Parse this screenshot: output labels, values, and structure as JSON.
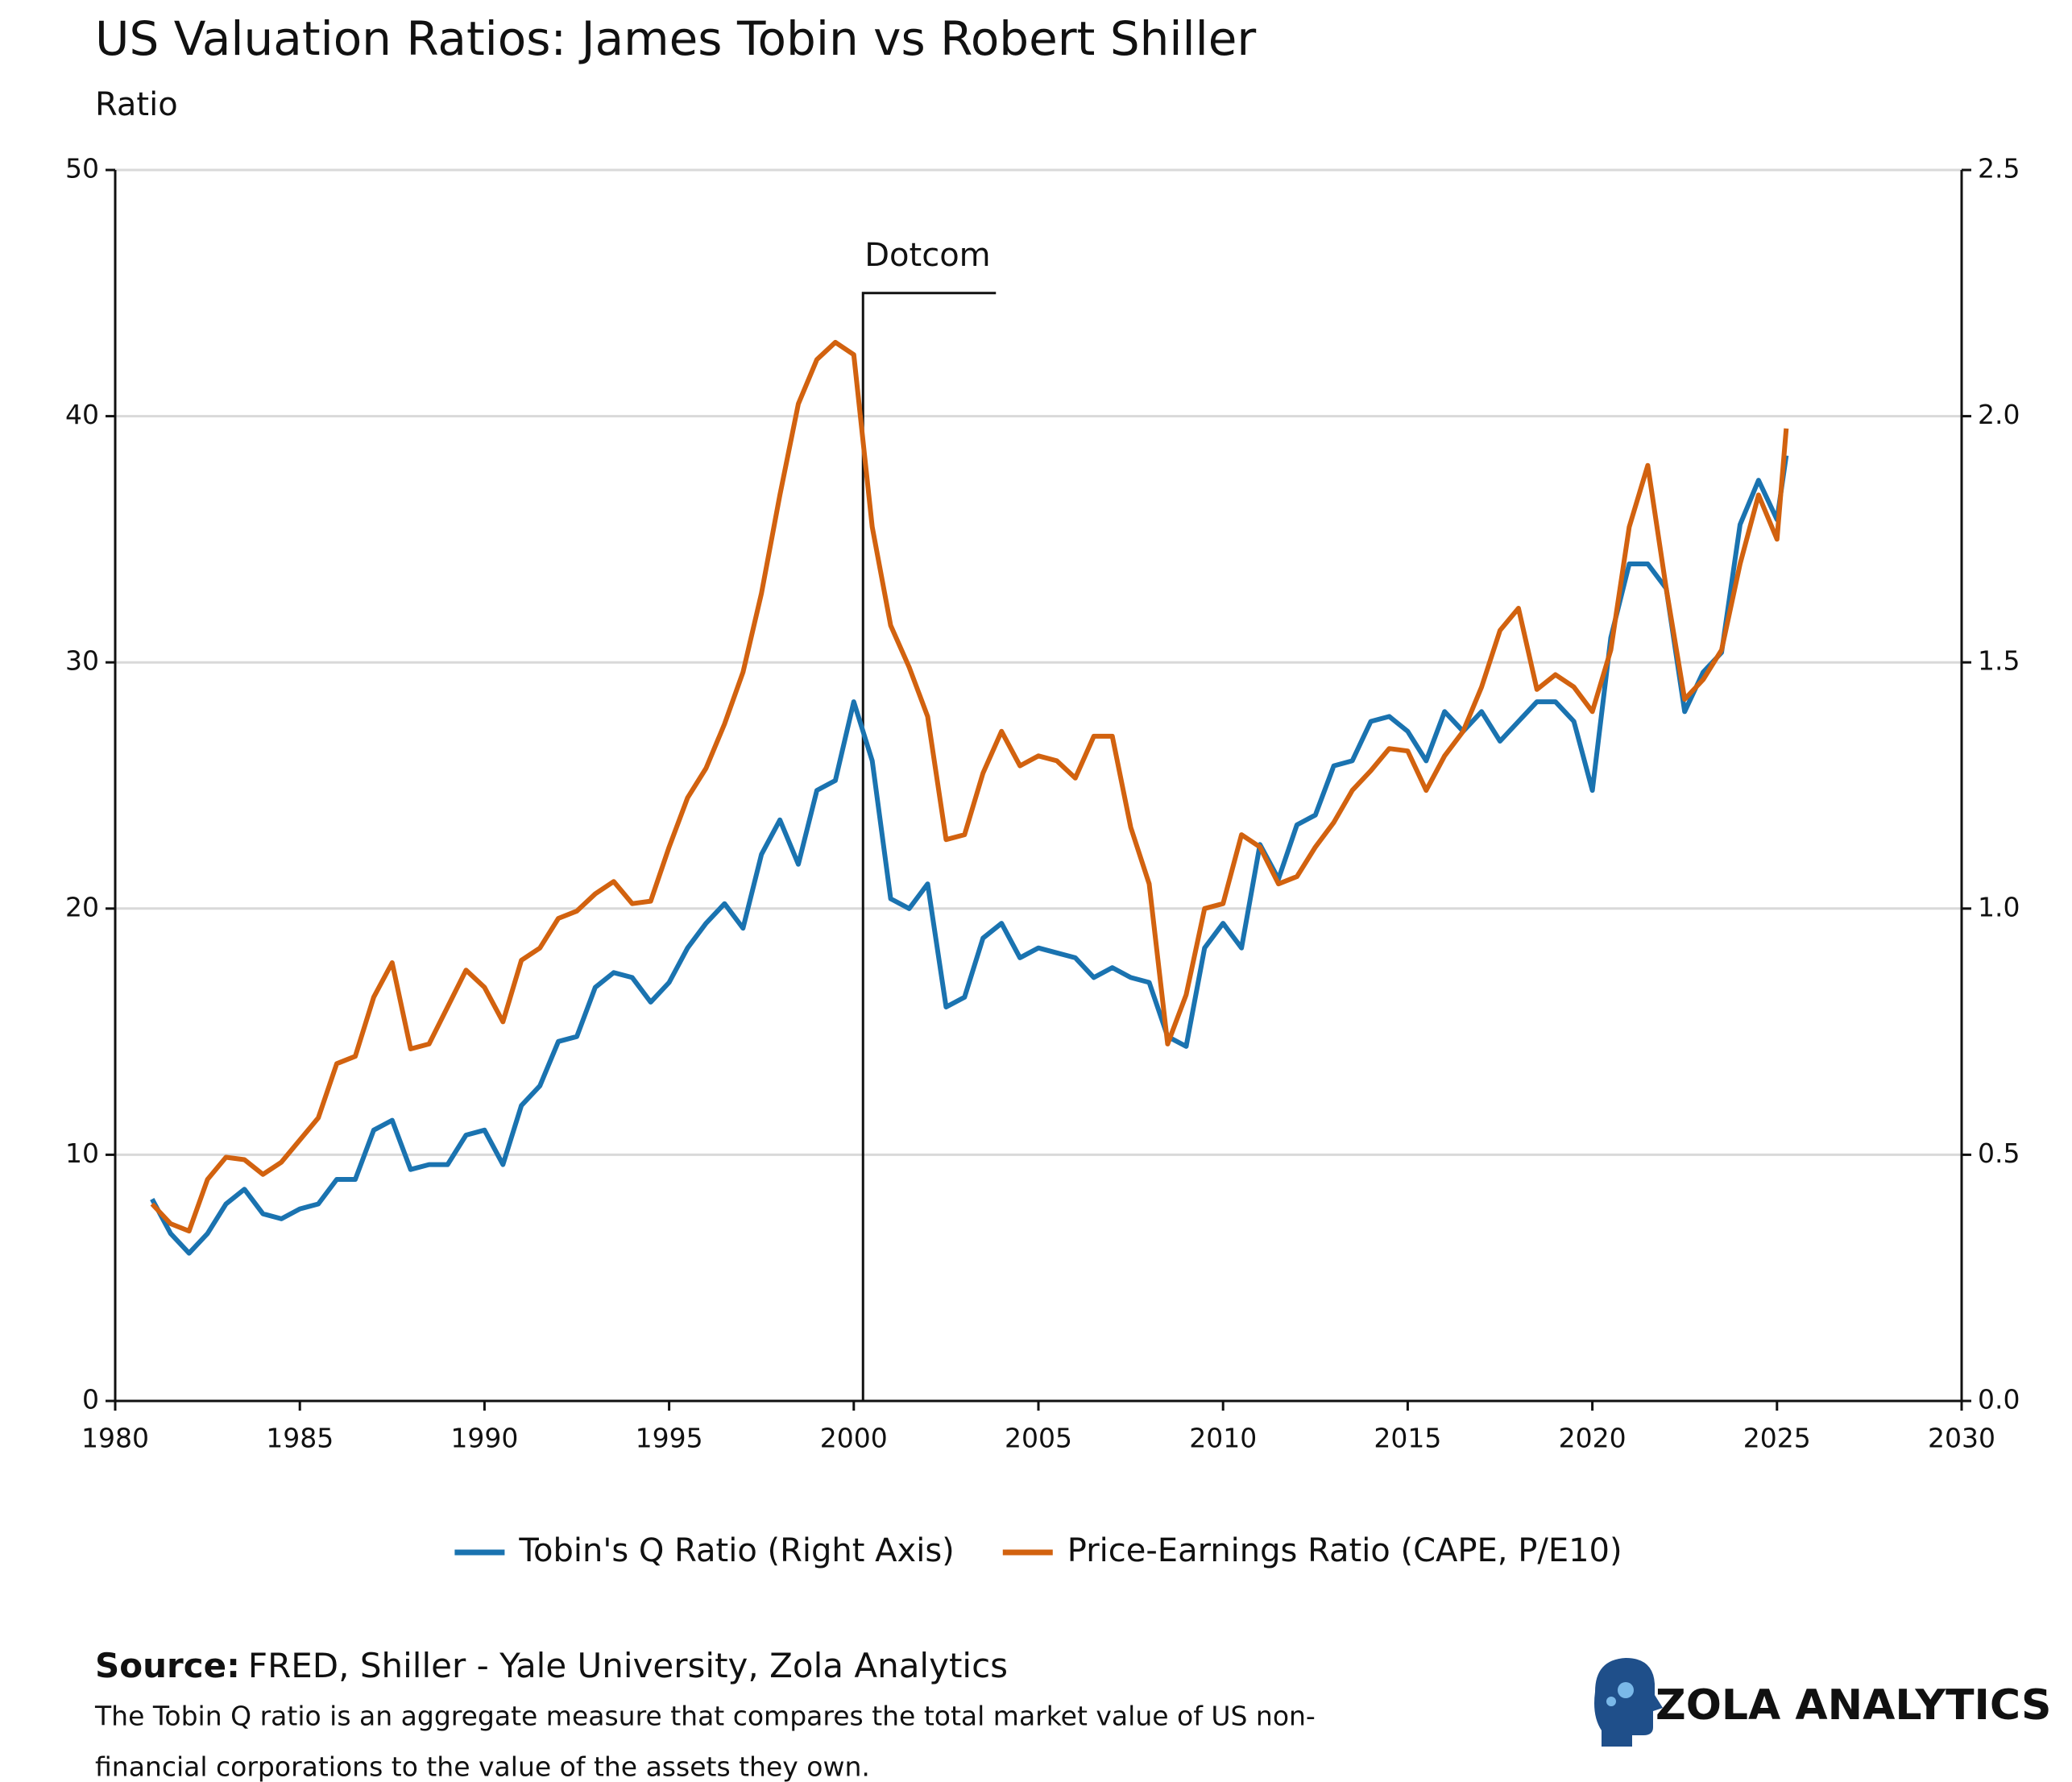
{
  "chart_data": {
    "type": "line",
    "title": "US Valuation Ratios: James Tobin vs Robert Shiller",
    "subtitle": "Ratio",
    "x": [
      1981.0,
      1981.5,
      1982.0,
      1982.5,
      1983.0,
      1983.5,
      1984.0,
      1984.5,
      1985.0,
      1985.5,
      1986.0,
      1986.5,
      1987.0,
      1987.5,
      1988.0,
      1988.5,
      1989.0,
      1989.5,
      1990.0,
      1990.5,
      1991.0,
      1991.5,
      1992.0,
      1992.5,
      1993.0,
      1993.5,
      1994.0,
      1994.5,
      1995.0,
      1995.5,
      1996.0,
      1996.5,
      1997.0,
      1997.5,
      1998.0,
      1998.5,
      1999.0,
      1999.5,
      2000.0,
      2000.5,
      2001.0,
      2001.5,
      2002.0,
      2002.5,
      2003.0,
      2003.5,
      2004.0,
      2004.5,
      2005.0,
      2005.5,
      2006.0,
      2006.5,
      2007.0,
      2007.5,
      2008.0,
      2008.5,
      2009.0,
      2009.5,
      2010.0,
      2010.5,
      2011.0,
      2011.5,
      2012.0,
      2012.5,
      2013.0,
      2013.5,
      2014.0,
      2014.5,
      2015.0,
      2015.5,
      2016.0,
      2016.5,
      2017.0,
      2017.5,
      2018.0,
      2018.5,
      2019.0,
      2019.5,
      2020.0,
      2020.5,
      2021.0,
      2021.5,
      2022.0,
      2022.5,
      2023.0,
      2023.5,
      2024.0,
      2024.5,
      2025.0,
      2025.25
    ],
    "series": [
      {
        "name": "Tobin's Q Ratio (Right Axis)",
        "color": "#1a73b0",
        "axis": "y2",
        "values": [
          0.41,
          0.34,
          0.3,
          0.34,
          0.4,
          0.43,
          0.38,
          0.37,
          0.39,
          0.4,
          0.45,
          0.45,
          0.55,
          0.57,
          0.47,
          0.48,
          0.48,
          0.54,
          0.55,
          0.48,
          0.6,
          0.64,
          0.73,
          0.74,
          0.84,
          0.87,
          0.86,
          0.81,
          0.85,
          0.92,
          0.97,
          1.01,
          0.96,
          1.11,
          1.18,
          1.09,
          1.24,
          1.26,
          1.42,
          1.3,
          1.02,
          1.0,
          1.05,
          0.8,
          0.82,
          0.94,
          0.97,
          0.9,
          0.92,
          0.91,
          0.9,
          0.86,
          0.88,
          0.86,
          0.85,
          0.74,
          0.72,
          0.92,
          0.97,
          0.92,
          1.13,
          1.06,
          1.17,
          1.19,
          1.29,
          1.3,
          1.38,
          1.39,
          1.36,
          1.3,
          1.4,
          1.36,
          1.4,
          1.34,
          1.38,
          1.42,
          1.42,
          1.38,
          1.24,
          1.55,
          1.7,
          1.7,
          1.65,
          1.4,
          1.48,
          1.52,
          1.78,
          1.87,
          1.79,
          1.92
        ]
      },
      {
        "name": "Price-Earnings Ratio (CAPE, P/E10)",
        "color": "#d2620f",
        "values": [
          8.0,
          7.2,
          6.9,
          9.0,
          9.9,
          9.8,
          9.2,
          9.7,
          10.6,
          11.5,
          13.7,
          14.0,
          16.4,
          17.8,
          14.3,
          14.5,
          16.0,
          17.5,
          16.8,
          15.4,
          17.9,
          18.4,
          19.6,
          19.9,
          20.6,
          21.1,
          20.2,
          20.3,
          22.5,
          24.5,
          25.7,
          27.5,
          29.6,
          32.8,
          36.8,
          40.5,
          42.3,
          43.0,
          42.5,
          35.5,
          31.5,
          29.8,
          27.8,
          22.8,
          23.0,
          25.5,
          27.2,
          25.8,
          26.2,
          26.0,
          25.3,
          27.0,
          27.0,
          23.3,
          21.0,
          14.5,
          16.5,
          20.0,
          20.2,
          23.0,
          22.5,
          21.0,
          21.3,
          22.5,
          23.5,
          24.8,
          25.6,
          26.5,
          26.4,
          24.8,
          26.2,
          27.2,
          29.0,
          31.3,
          32.2,
          28.9,
          29.5,
          29.0,
          28.0,
          30.5,
          35.5,
          38.0,
          33.0,
          28.5,
          29.3,
          30.5,
          34.0,
          36.8,
          35.0,
          39.5
        ]
      }
    ],
    "xlim": [
      1980,
      2030
    ],
    "xticks": [
      1980,
      1985,
      1990,
      1995,
      2000,
      2005,
      2010,
      2015,
      2020,
      2025,
      2030
    ],
    "ylim": [
      0,
      50
    ],
    "yticks": [
      0,
      10,
      20,
      30,
      40,
      50
    ],
    "y2lim": [
      0,
      2.5
    ],
    "y2ticks": [
      {
        "value": 0,
        "label": "0.0"
      },
      0.5,
      {
        "value": 1,
        "label": "1.0"
      },
      1.5,
      {
        "value": 2,
        "label": "2.0"
      },
      2.5
    ],
    "grid": true,
    "legend": "bottom",
    "annotation": {
      "text": "Dotcom",
      "x": 2000.25,
      "y": 45
    }
  },
  "footer": {
    "source_label": "Source:",
    "source": "FRED, Shiller - Yale University, Zola Analytics",
    "note_lines": [
      "The Tobin Q ratio is an aggregate measure that compares the total market value of US non-",
      "financial corporations to the value of the assets they own."
    ],
    "brand": "ZOLA ANALYTICS"
  }
}
